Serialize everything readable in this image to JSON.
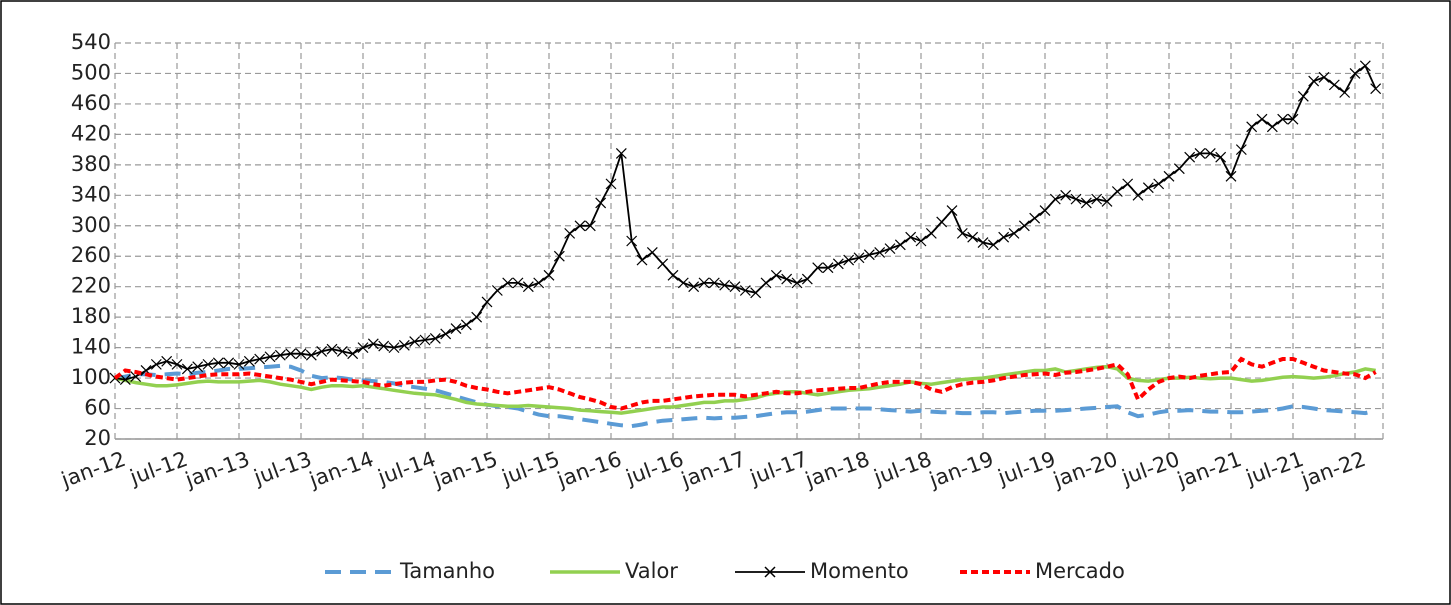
{
  "chart_data": {
    "type": "line",
    "categories": [
      "jan-12",
      null,
      null,
      null,
      null,
      null,
      "jul-12",
      null,
      null,
      null,
      null,
      null,
      "jan-13",
      null,
      null,
      null,
      null,
      null,
      "jul-13",
      null,
      null,
      null,
      null,
      null,
      "jan-14",
      null,
      null,
      null,
      null,
      null,
      "jul-14",
      null,
      null,
      null,
      null,
      null,
      "jan-15",
      null,
      null,
      null,
      null,
      null,
      "jul-15",
      null,
      null,
      null,
      null,
      null,
      "jan-16",
      null,
      null,
      null,
      null,
      null,
      "jul-16",
      null,
      null,
      null,
      null,
      null,
      "jan-17",
      null,
      null,
      null,
      null,
      null,
      "jul-17",
      null,
      null,
      null,
      null,
      null,
      "jan-18",
      null,
      null,
      null,
      null,
      null,
      "jul-18",
      null,
      null,
      null,
      null,
      null,
      "jan-19",
      null,
      null,
      null,
      null,
      null,
      "jul-19",
      null,
      null,
      null,
      null,
      null,
      "jan-20",
      null,
      null,
      null,
      null,
      null,
      "jul-20",
      null,
      null,
      null,
      null,
      null,
      "jan-21",
      null,
      null,
      null,
      null,
      null,
      "jul-21",
      null,
      null,
      null,
      null,
      null,
      "jan-22",
      null,
      null
    ],
    "series": [
      {
        "name": "Tamanho",
        "color": "#5b9bd5",
        "style": "dashed",
        "values": [
          100,
          102,
          105,
          105,
          104,
          105,
          106,
          105,
          107,
          108,
          110,
          112,
          112,
          113,
          114,
          115,
          116,
          115,
          110,
          103,
          100,
          101,
          100,
          98,
          97,
          96,
          95,
          93,
          90,
          88,
          86,
          84,
          80,
          76,
          72,
          68,
          65,
          63,
          62,
          60,
          56,
          52,
          50,
          50,
          48,
          46,
          44,
          42,
          40,
          38,
          37,
          39,
          42,
          44,
          45,
          46,
          47,
          48,
          47,
          48,
          48,
          49,
          50,
          52,
          54,
          55,
          55,
          56,
          58,
          60,
          60,
          60,
          60,
          60,
          59,
          58,
          57,
          56,
          57,
          56,
          55,
          55,
          54,
          54,
          55,
          55,
          54,
          55,
          56,
          57,
          57,
          57,
          58,
          59,
          60,
          61,
          62,
          63,
          55,
          50,
          52,
          55,
          57,
          57,
          58,
          57,
          56,
          56,
          55,
          55,
          56,
          57,
          58,
          60,
          63,
          62,
          60,
          58,
          57,
          56,
          55,
          54,
          57
        ]
      },
      {
        "name": "Valor",
        "color": "#92d050",
        "style": "solid",
        "values": [
          100,
          97,
          94,
          92,
          90,
          90,
          91,
          93,
          95,
          96,
          95,
          95,
          95,
          96,
          97,
          95,
          92,
          90,
          88,
          85,
          88,
          90,
          90,
          89,
          90,
          88,
          86,
          84,
          82,
          80,
          79,
          78,
          75,
          72,
          68,
          66,
          65,
          64,
          63,
          63,
          64,
          63,
          62,
          61,
          60,
          58,
          57,
          56,
          55,
          54,
          56,
          58,
          60,
          62,
          62,
          64,
          66,
          68,
          68,
          70,
          70,
          72,
          74,
          78,
          80,
          82,
          82,
          80,
          78,
          80,
          82,
          84,
          85,
          86,
          88,
          90,
          92,
          95,
          93,
          92,
          94,
          96,
          98,
          99,
          100,
          102,
          104,
          106,
          108,
          110,
          110,
          112,
          108,
          110,
          112,
          114,
          115,
          112,
          100,
          97,
          96,
          98,
          100,
          100,
          101,
          100,
          99,
          100,
          100,
          98,
          96,
          97,
          99,
          101,
          102,
          101,
          100,
          101,
          103,
          106,
          108,
          112,
          110
        ]
      },
      {
        "name": "Momento",
        "color": "#000000",
        "style": "solid",
        "marker": "x",
        "values": [
          100,
          98,
          102,
          110,
          118,
          122,
          118,
          112,
          115,
          118,
          120,
          120,
          118,
          122,
          125,
          128,
          130,
          132,
          132,
          130,
          135,
          138,
          135,
          132,
          140,
          145,
          142,
          140,
          143,
          148,
          150,
          152,
          158,
          165,
          170,
          180,
          200,
          215,
          225,
          225,
          220,
          225,
          235,
          260,
          290,
          300,
          300,
          330,
          355,
          395,
          280,
          255,
          265,
          250,
          235,
          225,
          220,
          225,
          225,
          222,
          220,
          215,
          212,
          225,
          235,
          230,
          225,
          230,
          245,
          245,
          250,
          255,
          258,
          262,
          265,
          270,
          275,
          285,
          280,
          290,
          305,
          320,
          290,
          285,
          278,
          275,
          285,
          290,
          300,
          310,
          320,
          335,
          340,
          335,
          330,
          335,
          332,
          345,
          355,
          340,
          350,
          355,
          365,
          375,
          390,
          395,
          395,
          390,
          365,
          400,
          430,
          440,
          430,
          440,
          440,
          470,
          490,
          495,
          485,
          475,
          500,
          510,
          480
        ]
      },
      {
        "name": "Mercado",
        "color": "#ff0000",
        "style": "dotted",
        "values": [
          100,
          110,
          108,
          105,
          102,
          100,
          98,
          100,
          102,
          104,
          105,
          105,
          105,
          106,
          104,
          102,
          100,
          98,
          95,
          92,
          95,
          98,
          97,
          96,
          95,
          92,
          90,
          92,
          94,
          95,
          95,
          97,
          98,
          95,
          90,
          87,
          85,
          82,
          80,
          82,
          84,
          86,
          88,
          85,
          80,
          75,
          72,
          68,
          62,
          60,
          64,
          68,
          70,
          70,
          72,
          74,
          76,
          77,
          78,
          78,
          78,
          76,
          78,
          80,
          82,
          80,
          80,
          82,
          84,
          85,
          86,
          87,
          87,
          90,
          93,
          95,
          95,
          95,
          92,
          85,
          82,
          88,
          92,
          94,
          95,
          97,
          100,
          102,
          104,
          105,
          106,
          104,
          107,
          108,
          110,
          112,
          115,
          118,
          105,
          72,
          85,
          95,
          100,
          102,
          100,
          103,
          105,
          107,
          108,
          125,
          118,
          115,
          120,
          125,
          125,
          120,
          115,
          110,
          108,
          106,
          105,
          100,
          108
        ]
      }
    ],
    "ylim": [
      20,
      540
    ],
    "yticks": [
      20,
      60,
      100,
      140,
      180,
      220,
      260,
      300,
      340,
      380,
      420,
      460,
      500,
      540
    ],
    "grid": true,
    "legend": "bottom"
  }
}
